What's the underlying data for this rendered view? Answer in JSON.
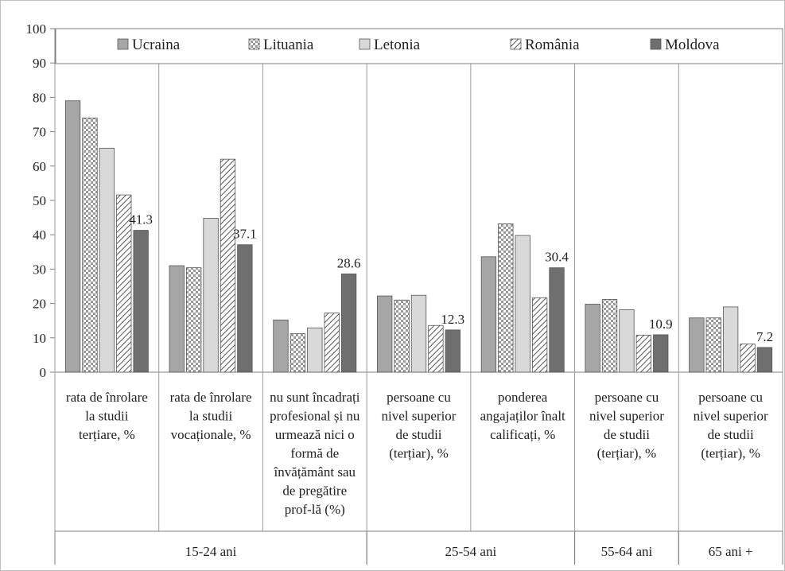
{
  "chart_data": {
    "type": "bar",
    "title": "",
    "xlabel": "",
    "ylabel": "",
    "ylim": [
      0,
      100
    ],
    "yticks": [
      0,
      10,
      20,
      30,
      40,
      50,
      60,
      70,
      80,
      90,
      100
    ],
    "grid": false,
    "legend_position": "top",
    "categories": [
      "rata de înrolare la studii terțiare, %",
      "rata de înrolare la studii vocaționale, %",
      "nu sunt încadrați profesional și nu urmează nici o formă de învățământ sau de pregătire prof-lă (%)",
      "persoane cu nivel superior de studii (terțiar), %",
      "ponderea angajaților înalt calificați, %",
      "persoane cu nivel superior de studii (terțiar), %",
      "persoane cu nivel superior de studii (terțiar), %"
    ],
    "category_lines": [
      [
        "rata de înrolare",
        "la studii",
        "terțiare, %"
      ],
      [
        "rata de înrolare",
        "la studii",
        "vocaționale, %"
      ],
      [
        "nu sunt încadrați",
        "profesional și nu",
        "urmează nici o",
        "formă de",
        "învățământ sau",
        "de pregătire",
        "prof-lă (%)"
      ],
      [
        "persoane cu",
        "nivel superior",
        "de studii",
        "(terțiar), %"
      ],
      [
        "ponderea",
        "angajaților înalt",
        "calificați, %"
      ],
      [
        "persoane cu",
        "nivel superior",
        "de studii",
        "(terțiar), %"
      ],
      [
        "persoane cu",
        "nivel superior",
        "de studii",
        "(terțiar), %"
      ]
    ],
    "groups": [
      {
        "label": "15-24 ani",
        "categories": [
          0,
          1,
          2
        ]
      },
      {
        "label": "25-54 ani",
        "categories": [
          3,
          4
        ]
      },
      {
        "label": "55-64 ani",
        "categories": [
          5
        ]
      },
      {
        "label": "65 ani +",
        "categories": [
          6
        ]
      }
    ],
    "series": [
      {
        "name": "Ucraina",
        "color": "#a6a6a6",
        "pattern": "solid",
        "values": [
          79,
          31,
          15.2,
          22.2,
          33.6,
          19.8,
          15.8
        ]
      },
      {
        "name": "Lituania",
        "color": "#ffffff",
        "pattern": "checker",
        "values": [
          74,
          30.4,
          11.2,
          21,
          43.2,
          21.2,
          15.8
        ]
      },
      {
        "name": "Letonia",
        "color": "#d9d9d9",
        "pattern": "solid",
        "values": [
          65.2,
          44.8,
          12.9,
          22.4,
          39.8,
          18.2,
          19
        ]
      },
      {
        "name": "România",
        "color": "#ffffff",
        "pattern": "diagonal",
        "values": [
          51.6,
          62,
          17.2,
          13.6,
          21.6,
          10.8,
          8.2
        ]
      },
      {
        "name": "Moldova",
        "color": "#6f6f6f",
        "pattern": "solid",
        "values": [
          41.3,
          37.1,
          28.6,
          12.3,
          30.4,
          10.9,
          7.2
        ]
      }
    ],
    "data_labels": [
      {
        "series": 4,
        "category": 0,
        "text": "41.3"
      },
      {
        "series": 4,
        "category": 1,
        "text": "37.1"
      },
      {
        "series": 4,
        "category": 2,
        "text": "28.6"
      },
      {
        "series": 4,
        "category": 3,
        "text": "12.3"
      },
      {
        "series": 4,
        "category": 4,
        "text": "30.4"
      },
      {
        "series": 4,
        "category": 5,
        "text": "10.9"
      },
      {
        "series": 4,
        "category": 6,
        "text": "7.2"
      }
    ]
  }
}
